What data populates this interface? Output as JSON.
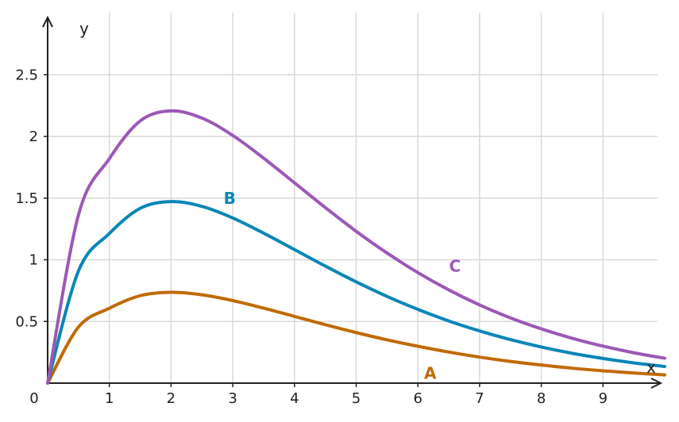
{
  "chart_data": {
    "type": "line",
    "title": "",
    "xlabel": "x",
    "ylabel": "y",
    "origin_label": "0",
    "xlim": [
      0,
      10
    ],
    "ylim": [
      0,
      3
    ],
    "x_ticks": [
      1,
      2,
      3,
      4,
      5,
      6,
      7,
      8,
      9
    ],
    "x_tick_labels": [
      "1",
      "2",
      "3",
      "4",
      "5",
      "6",
      "7",
      "8",
      "9"
    ],
    "y_ticks": [
      0.5,
      1,
      1.5,
      2,
      2.5
    ],
    "y_tick_labels": [
      "0.5",
      "1",
      "1.5",
      "2",
      "2.5"
    ],
    "grid": true,
    "x": [
      0,
      0.5,
      1,
      1.5,
      2,
      2.5,
      3,
      3.5,
      4,
      4.5,
      5,
      5.5,
      6,
      6.5,
      7,
      7.5,
      8,
      8.5,
      9,
      9.5,
      10
    ],
    "series": [
      {
        "name": "A",
        "color": "#c06a00",
        "values": [
          0,
          0.455,
          0.607,
          0.709,
          0.736,
          0.716,
          0.669,
          0.608,
          0.541,
          0.474,
          0.41,
          0.351,
          0.299,
          0.252,
          0.211,
          0.176,
          0.147,
          0.121,
          0.1,
          0.082,
          0.067
        ],
        "label_at": [
          6.2,
          0.08
        ]
      },
      {
        "name": "B",
        "color": "#0a86b8",
        "values": [
          0,
          0.91,
          1.213,
          1.417,
          1.472,
          1.433,
          1.339,
          1.216,
          1.083,
          0.949,
          0.821,
          0.703,
          0.598,
          0.504,
          0.423,
          0.353,
          0.293,
          0.242,
          0.2,
          0.164,
          0.135
        ],
        "label_at": [
          2.95,
          1.5
        ]
      },
      {
        "name": "C",
        "color": "#9b59b6",
        "values": [
          0,
          1.365,
          1.82,
          2.126,
          2.207,
          2.149,
          2.008,
          1.824,
          1.624,
          1.423,
          1.231,
          1.055,
          0.896,
          0.756,
          0.634,
          0.529,
          0.44,
          0.364,
          0.3,
          0.246,
          0.202
        ],
        "label_at": [
          6.6,
          0.95
        ]
      }
    ]
  }
}
